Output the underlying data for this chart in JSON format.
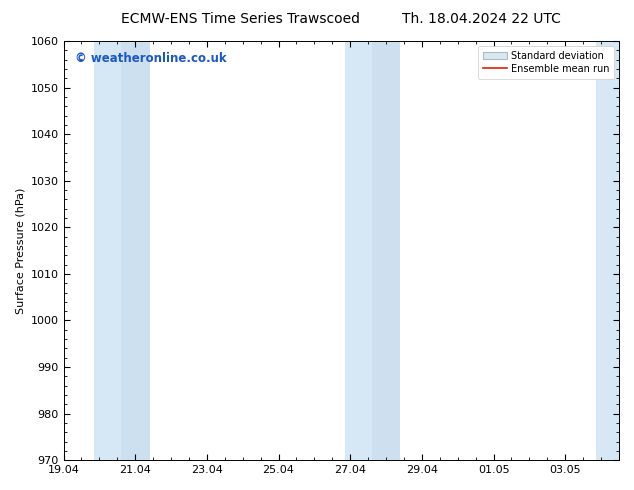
{
  "title_left": "ECMW-ENS Time Series Trawscoed",
  "title_right": "Th. 18.04.2024 22 UTC",
  "ylabel": "Surface Pressure (hPa)",
  "ylim": [
    970,
    1060
  ],
  "yticks": [
    970,
    980,
    990,
    1000,
    1010,
    1020,
    1030,
    1040,
    1050,
    1060
  ],
  "xlim": [
    0,
    15.5
  ],
  "xtick_positions": [
    0,
    2,
    4,
    6,
    8,
    10,
    12,
    14
  ],
  "xtick_labels": [
    "19.04",
    "21.04",
    "23.04",
    "25.04",
    "27.04",
    "29.04",
    "01.05",
    "03.05"
  ],
  "shaded_bands": [
    {
      "x_start": 0.85,
      "x_end": 1.6,
      "color": "#d6e8f5"
    },
    {
      "x_start": 1.6,
      "x_end": 2.4,
      "color": "#cce0f0"
    },
    {
      "x_start": 7.85,
      "x_end": 8.6,
      "color": "#d6e8f5"
    },
    {
      "x_start": 8.6,
      "x_end": 9.4,
      "color": "#cce0f0"
    },
    {
      "x_start": 14.85,
      "x_end": 15.5,
      "color": "#d6e8f5"
    }
  ],
  "watermark_text": "© weatheronline.co.uk",
  "watermark_color": "#1a56cc",
  "legend_std_label": "Standard deviation",
  "legend_ens_label": "Ensemble mean run",
  "legend_std_facecolor": "#dce8f0",
  "legend_std_edgecolor": "#aabbcc",
  "legend_ens_color": "#dd2200",
  "background_color": "#ffffff",
  "plot_area_color": "#ffffff",
  "border_color": "#000000",
  "title_fontsize": 10,
  "axis_label_fontsize": 8,
  "tick_fontsize": 8,
  "watermark_fontsize": 8.5,
  "legend_fontsize": 7
}
